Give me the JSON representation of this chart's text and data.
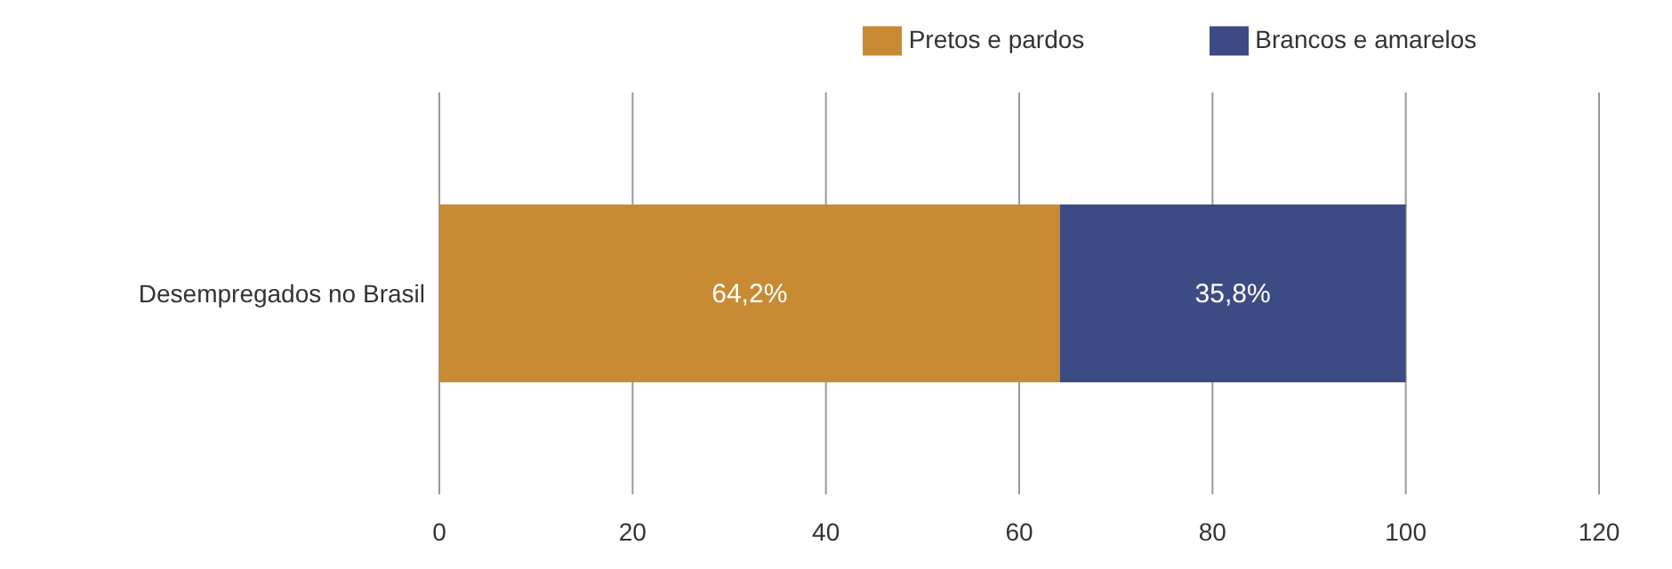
{
  "chart_data": {
    "type": "bar",
    "orientation": "horizontal",
    "stacked": true,
    "categories": [
      "Desempregados no Brasil"
    ],
    "series": [
      {
        "name": "Pretos e pardos",
        "color": "#c98a34",
        "values": [
          64.2
        ],
        "value_labels": [
          "64,2%"
        ]
      },
      {
        "name": "Brancos e amarelos",
        "color": "#3d4b85",
        "values": [
          35.8
        ],
        "value_labels": [
          "35,8%"
        ]
      }
    ],
    "xlim": [
      0,
      120
    ],
    "xticks": [
      0,
      20,
      40,
      60,
      80,
      100,
      120
    ],
    "grid": "x",
    "legend": "top"
  }
}
